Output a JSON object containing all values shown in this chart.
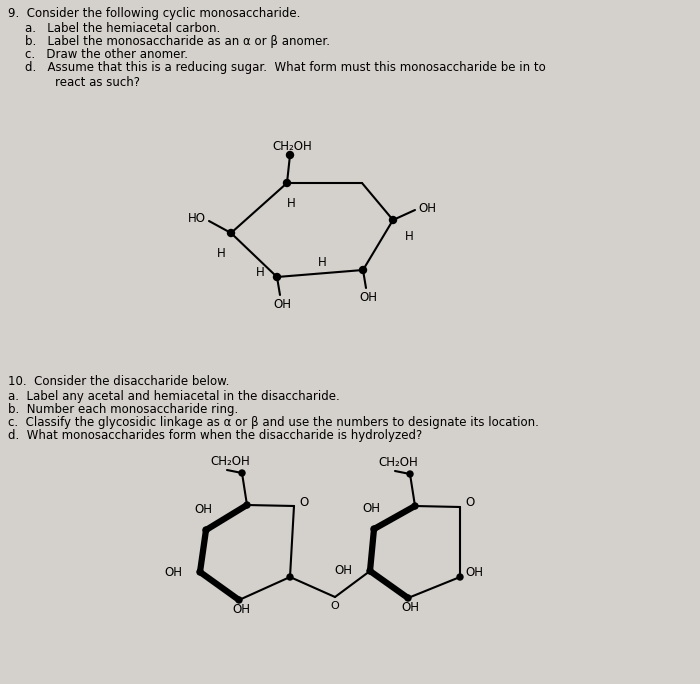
{
  "bg_color": "#d4d0cb",
  "text_color": "#000000",
  "q9_title": "9.  Consider the following cyclic monosaccharide.",
  "q9_parts": [
    "a.   Label the hemiacetal carbon.",
    "b.   Label the monosaccharide as an α or β anomer.",
    "c.   Draw the other anomer.",
    "d.   Assume that this is a reducing sugar.  What form must this monosaccharide be in to\n        react as such?"
  ],
  "q10_title": "10.  Consider the disaccharide below.",
  "q10_parts": [
    "a.  Label any acetal and hemiacetal in the disaccharide.",
    "b.  Number each monosaccharide ring.",
    "c.  Classify the glycosidic linkage as α or β and use the numbers to designate its location.",
    "d.  What monosaccharides form when the disaccharide is hydrolyzed?"
  ],
  "figsize": [
    7.0,
    6.84
  ],
  "dpi": 100
}
